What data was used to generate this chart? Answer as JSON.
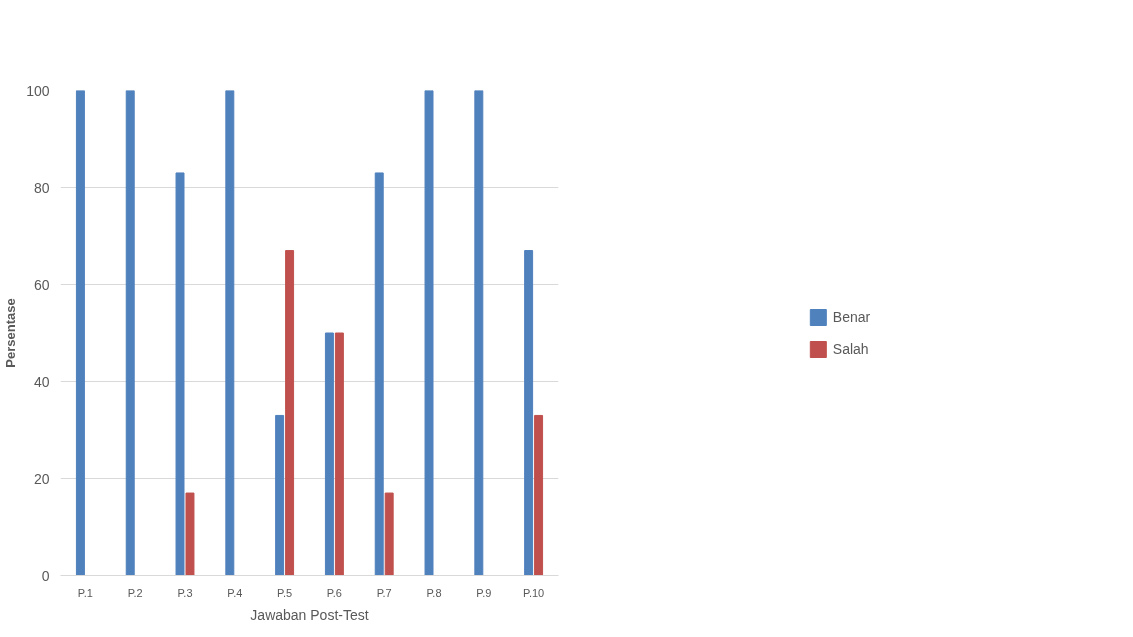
{
  "chart_data": {
    "type": "bar",
    "xlabel": "Jawaban Post-Test",
    "ylabel": "Persentase",
    "categories": [
      "P.1",
      "P.2",
      "P.3",
      "P.4",
      "P.5",
      "P.6",
      "P.7",
      "P.8",
      "P.9",
      "P.10"
    ],
    "series": [
      {
        "name": "Benar",
        "color": "#4f81bd",
        "values": [
          100,
          100,
          83,
          100,
          33,
          50,
          83,
          100,
          100,
          67
        ]
      },
      {
        "name": "Salah",
        "color": "#c0504d",
        "values": [
          0,
          0,
          17,
          0,
          67,
          50,
          17,
          0,
          0,
          33
        ]
      }
    ],
    "ylim": [
      0,
      100
    ],
    "yticks": [
      0,
      20,
      40,
      60,
      80,
      100
    ],
    "grid": "y",
    "legend": "right"
  }
}
